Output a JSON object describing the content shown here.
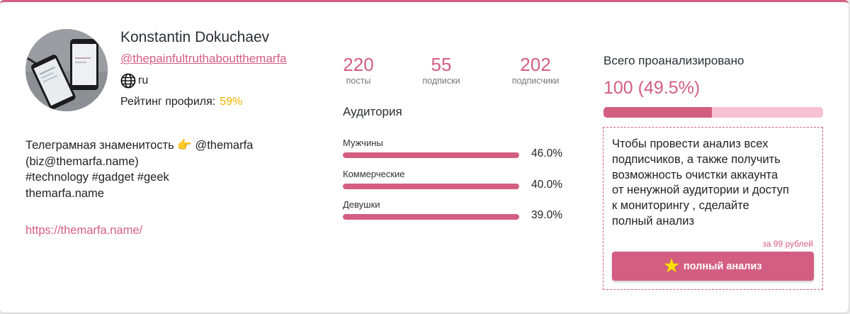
{
  "profile": {
    "name": "Konstantin Dokuchaev",
    "handle": "@thepainfultruthaboutthemarfa",
    "language": "ru",
    "rating_label": "Рейтинг профиля:",
    "rating_value": "59%",
    "bio_lines": [
      "Телеграмная знаменитость 👉 @themarfa",
      "(biz@themarfa.name)",
      "#technology #gadget #geek",
      "themarfa.name"
    ],
    "link": "https://themarfa.name/"
  },
  "stats": [
    {
      "value": "220",
      "label": "посты"
    },
    {
      "value": "55",
      "label": "подписки"
    },
    {
      "value": "202",
      "label": "подписчики"
    }
  ],
  "audience": {
    "title": "Аудитория",
    "rows": [
      {
        "label": "Мужчины",
        "percent_text": "46.0%",
        "fraction": 1.0
      },
      {
        "label": "Коммерческие",
        "percent_text": "40.0%",
        "fraction": 1.0
      },
      {
        "label": "Девушки",
        "percent_text": "39.0%",
        "fraction": 1.0
      }
    ]
  },
  "analysis": {
    "title": "Всего проанализировано",
    "value": "100 (49.5%)",
    "progress": 0.495,
    "promo_lines": [
      "Чтобы провести анализ всех",
      "подписчиков, а также получить",
      "возможность очистки аккаунта",
      "от ненужной аудитории и доступ",
      "к мониторингу , сделайте",
      "полный анализ"
    ],
    "price": "за 99 рублей",
    "button_label": "полный анализ",
    "button_icon": "star-icon"
  },
  "colors": {
    "accent": "#d45e82",
    "accent_light": "#f7c1d4",
    "rating": "#f0b400"
  }
}
